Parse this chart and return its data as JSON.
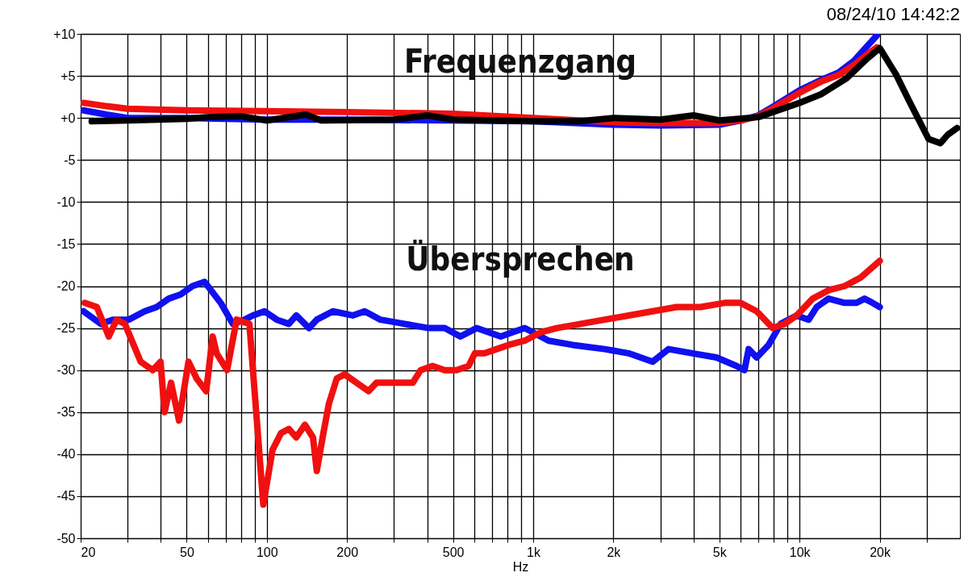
{
  "chart_data": {
    "type": "line",
    "xlabel": "Hz",
    "log": "x",
    "grid": true,
    "line_style": "solid",
    "annotations": [
      "08/24/10 14:42:2",
      "Frequenzgang",
      "Übersprechen"
    ],
    "xlim": [
      20,
      40000
    ],
    "xticks": [
      20,
      {
        "value": 30,
        "label": null
      },
      {
        "value": 40,
        "label": null
      },
      50,
      {
        "value": 60,
        "label": null
      },
      {
        "value": 70,
        "label": null
      },
      {
        "value": 80,
        "label": null
      },
      {
        "value": 90,
        "label": null
      },
      100,
      200,
      {
        "value": 300,
        "label": null
      },
      {
        "value": 400,
        "label": null
      },
      500,
      {
        "value": 600,
        "label": null
      },
      {
        "value": 700,
        "label": null
      },
      {
        "value": 800,
        "label": null
      },
      {
        "value": 900,
        "label": null
      },
      {
        "value": 1000,
        "label": "1k"
      },
      {
        "value": 2000,
        "label": "2k"
      },
      {
        "value": 3000,
        "label": null
      },
      {
        "value": 4000,
        "label": null
      },
      {
        "value": 5000,
        "label": "5k"
      },
      {
        "value": 6000,
        "label": null
      },
      {
        "value": 7000,
        "label": null
      },
      {
        "value": 8000,
        "label": null
      },
      {
        "value": 9000,
        "label": null
      },
      {
        "value": 10000,
        "label": "10k"
      },
      {
        "value": 20000,
        "label": "20k"
      },
      {
        "value": 30000,
        "label": null
      }
    ],
    "ylim": [
      -50,
      10
    ],
    "yticks": [
      {
        "value": 10,
        "label": "+10"
      },
      {
        "value": 5,
        "label": "+5"
      },
      {
        "value": 0,
        "label": "+0"
      },
      -5,
      -10,
      -15,
      -20,
      -25,
      -30,
      -35,
      -40,
      -45,
      -50
    ],
    "series": [
      {
        "color": "#1010f0",
        "x": [
          20.5,
          25,
          30,
          50,
          100,
          200,
          500,
          1000,
          2000,
          3000,
          5000,
          6000,
          7000,
          8000,
          10000,
          12000,
          14000,
          16000,
          18000,
          19500
        ],
        "values": [
          0.9,
          0.4,
          0,
          0,
          -0.2,
          -0.2,
          -0.3,
          -0.4,
          -0.8,
          -0.9,
          -0.8,
          -0.3,
          0.3,
          1.4,
          3.3,
          4.5,
          5.4,
          6.8,
          8.6,
          9.8
        ]
      },
      {
        "color": "#f01010",
        "x": [
          20.5,
          25,
          30,
          50,
          100,
          200,
          500,
          1000,
          2000,
          3000,
          5000,
          6000,
          7000,
          8000,
          10000,
          12000,
          14000,
          16000,
          18000,
          19500
        ],
        "values": [
          1.8,
          1.4,
          1.1,
          0.9,
          0.8,
          0.7,
          0.5,
          0,
          -0.5,
          -0.6,
          -0.6,
          -0.3,
          0.2,
          1.2,
          3,
          4.3,
          5.1,
          6.3,
          7.6,
          8.4
        ]
      },
      {
        "color": "#000000",
        "x": [
          22,
          30,
          50,
          60,
          80,
          100,
          140,
          160,
          300,
          400,
          500,
          1000,
          1500,
          2000,
          3000,
          4000,
          5000,
          7000,
          10000,
          12000,
          15000,
          18000,
          20000,
          23000,
          26000,
          30500,
          33800,
          36000,
          39000
        ],
        "values": [
          -0.4,
          -0.3,
          -0.1,
          0.1,
          0.2,
          -0.3,
          0.4,
          -0.3,
          -0.2,
          0.3,
          -0.2,
          -0.4,
          -0.4,
          0,
          -0.2,
          0.3,
          -0.3,
          0.1,
          1.8,
          2.8,
          4.7,
          7.1,
          8.3,
          5.2,
          1.8,
          -2.5,
          -3,
          -2,
          -1.2
        ]
      },
      {
        "color": "#1010f0",
        "x": [
          20.5,
          23.8,
          26.4,
          30.3,
          34.8,
          38.6,
          42.8,
          47.4,
          52.6,
          58.4,
          61.7,
          67.1,
          74.5,
          82.5,
          88.5,
          98,
          109,
          121,
          129,
          144,
          154,
          177,
          210,
          233,
          267,
          329,
          405,
          465,
          533,
          613,
          755,
          929,
          1143,
          1406,
          1854,
          2281,
          2807,
          3222,
          3965,
          4877,
          5796,
          6211,
          6439,
          6902,
          7651,
          8492,
          9750,
          10820,
          11590,
          12850,
          14760,
          16370,
          17540,
          18790,
          20000
        ],
        "values": [
          -23,
          -24.5,
          -24,
          -24,
          -23,
          -22.5,
          -21.5,
          -21,
          -20,
          -19.5,
          -20.5,
          -22,
          -24.5,
          -24,
          -23.5,
          -23,
          -24,
          -24.5,
          -23.5,
          -25,
          -24,
          -23,
          -23.5,
          -23,
          -24,
          -24.5,
          -25,
          -25,
          -26,
          -25,
          -26,
          -25,
          -26.5,
          -27,
          -27.5,
          -28,
          -29,
          -27.5,
          -28,
          -28.5,
          -29.5,
          -30,
          -27.5,
          -28.5,
          -27,
          -24.5,
          -23.5,
          -24,
          -22.5,
          -21.5,
          -22,
          -22,
          -21.5,
          -22,
          -22.5
        ]
      },
      {
        "color": "#f01010",
        "x": [
          20.7,
          23,
          25.5,
          27.3,
          29.3,
          33.6,
          37.3,
          39.9,
          41.3,
          43.7,
          46.8,
          50.8,
          54.5,
          59.2,
          62.6,
          64.8,
          70.9,
          77,
          86,
          97,
          105,
          113,
          121,
          129,
          139,
          149,
          154,
          163,
          171,
          183,
          196,
          217,
          241,
          258,
          286,
          318,
          353,
          378,
          419,
          465,
          515,
          572,
          604,
          657,
          729,
          809,
          929,
          1067,
          1224,
          1507,
          1854,
          2281,
          2807,
          3453,
          4249,
          5228,
          6002,
          6902,
          7925,
          8790,
          9750,
          11200,
          12850,
          14760,
          16950,
          20000
        ],
        "values": [
          -22,
          -22.5,
          -26,
          -24,
          -24.5,
          -29,
          -30,
          -29,
          -35,
          -31.5,
          -36,
          -29,
          -31,
          -32.5,
          -26,
          -28,
          -30,
          -24,
          -24.5,
          -46,
          -39.5,
          -37.5,
          -37,
          -38,
          -36.5,
          -38,
          -42,
          -37.5,
          -34,
          -31,
          -30.5,
          -31.5,
          -32.5,
          -31.5,
          -31.5,
          -31.5,
          -31.5,
          -30,
          -29.5,
          -30,
          -30,
          -29.5,
          -28,
          -28,
          -27.5,
          -27,
          -26.5,
          -25.5,
          -25,
          -24.5,
          -24,
          -23.5,
          -23,
          -22.5,
          -22.5,
          -22,
          -22,
          -23,
          -25,
          -24.5,
          -23.5,
          -21.5,
          -20.5,
          -20,
          -19,
          -17
        ]
      }
    ]
  }
}
